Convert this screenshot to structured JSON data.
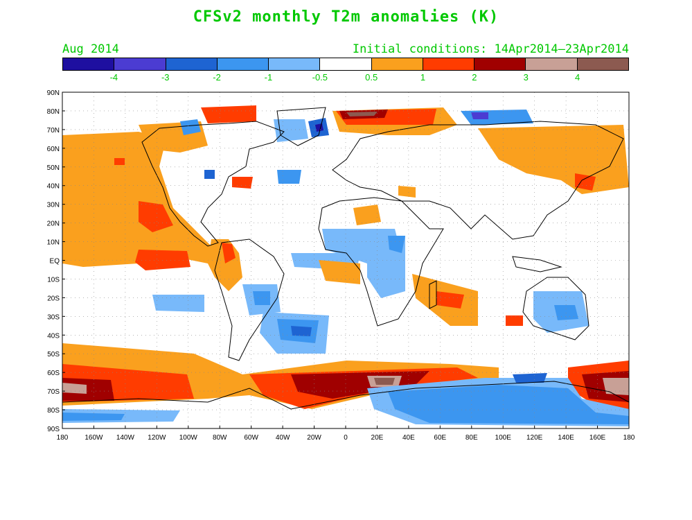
{
  "title": "CFSv2 monthly T2m anomalies (K)",
  "valid_month": "Aug 2014",
  "initial_conditions": "Initial conditions: 14Apr2014–23Apr2014",
  "legend": {
    "colors": [
      "#1e0fa0",
      "#4b3cd2",
      "#1e64d2",
      "#3c96f0",
      "#78b9fa",
      "#ffffff",
      "#faa01e",
      "#ff3c00",
      "#a00000",
      "#c8a096",
      "#8c5a50"
    ],
    "labels": [
      "-4",
      "-3",
      "-2",
      "-1",
      "-0.5",
      "0.5",
      "1",
      "2",
      "3",
      "4"
    ]
  },
  "map": {
    "lat_labels": [
      "90N",
      "80N",
      "70N",
      "60N",
      "50N",
      "40N",
      "30N",
      "20N",
      "10N",
      "EQ",
      "10S",
      "20S",
      "30S",
      "40S",
      "50S",
      "60S",
      "70S",
      "80S",
      "90S"
    ],
    "lon_labels": [
      "180",
      "160W",
      "140W",
      "120W",
      "100W",
      "80W",
      "60W",
      "40W",
      "20W",
      "0",
      "20E",
      "40E",
      "60E",
      "80E",
      "100E",
      "120E",
      "140E",
      "160E",
      "180"
    ]
  }
}
